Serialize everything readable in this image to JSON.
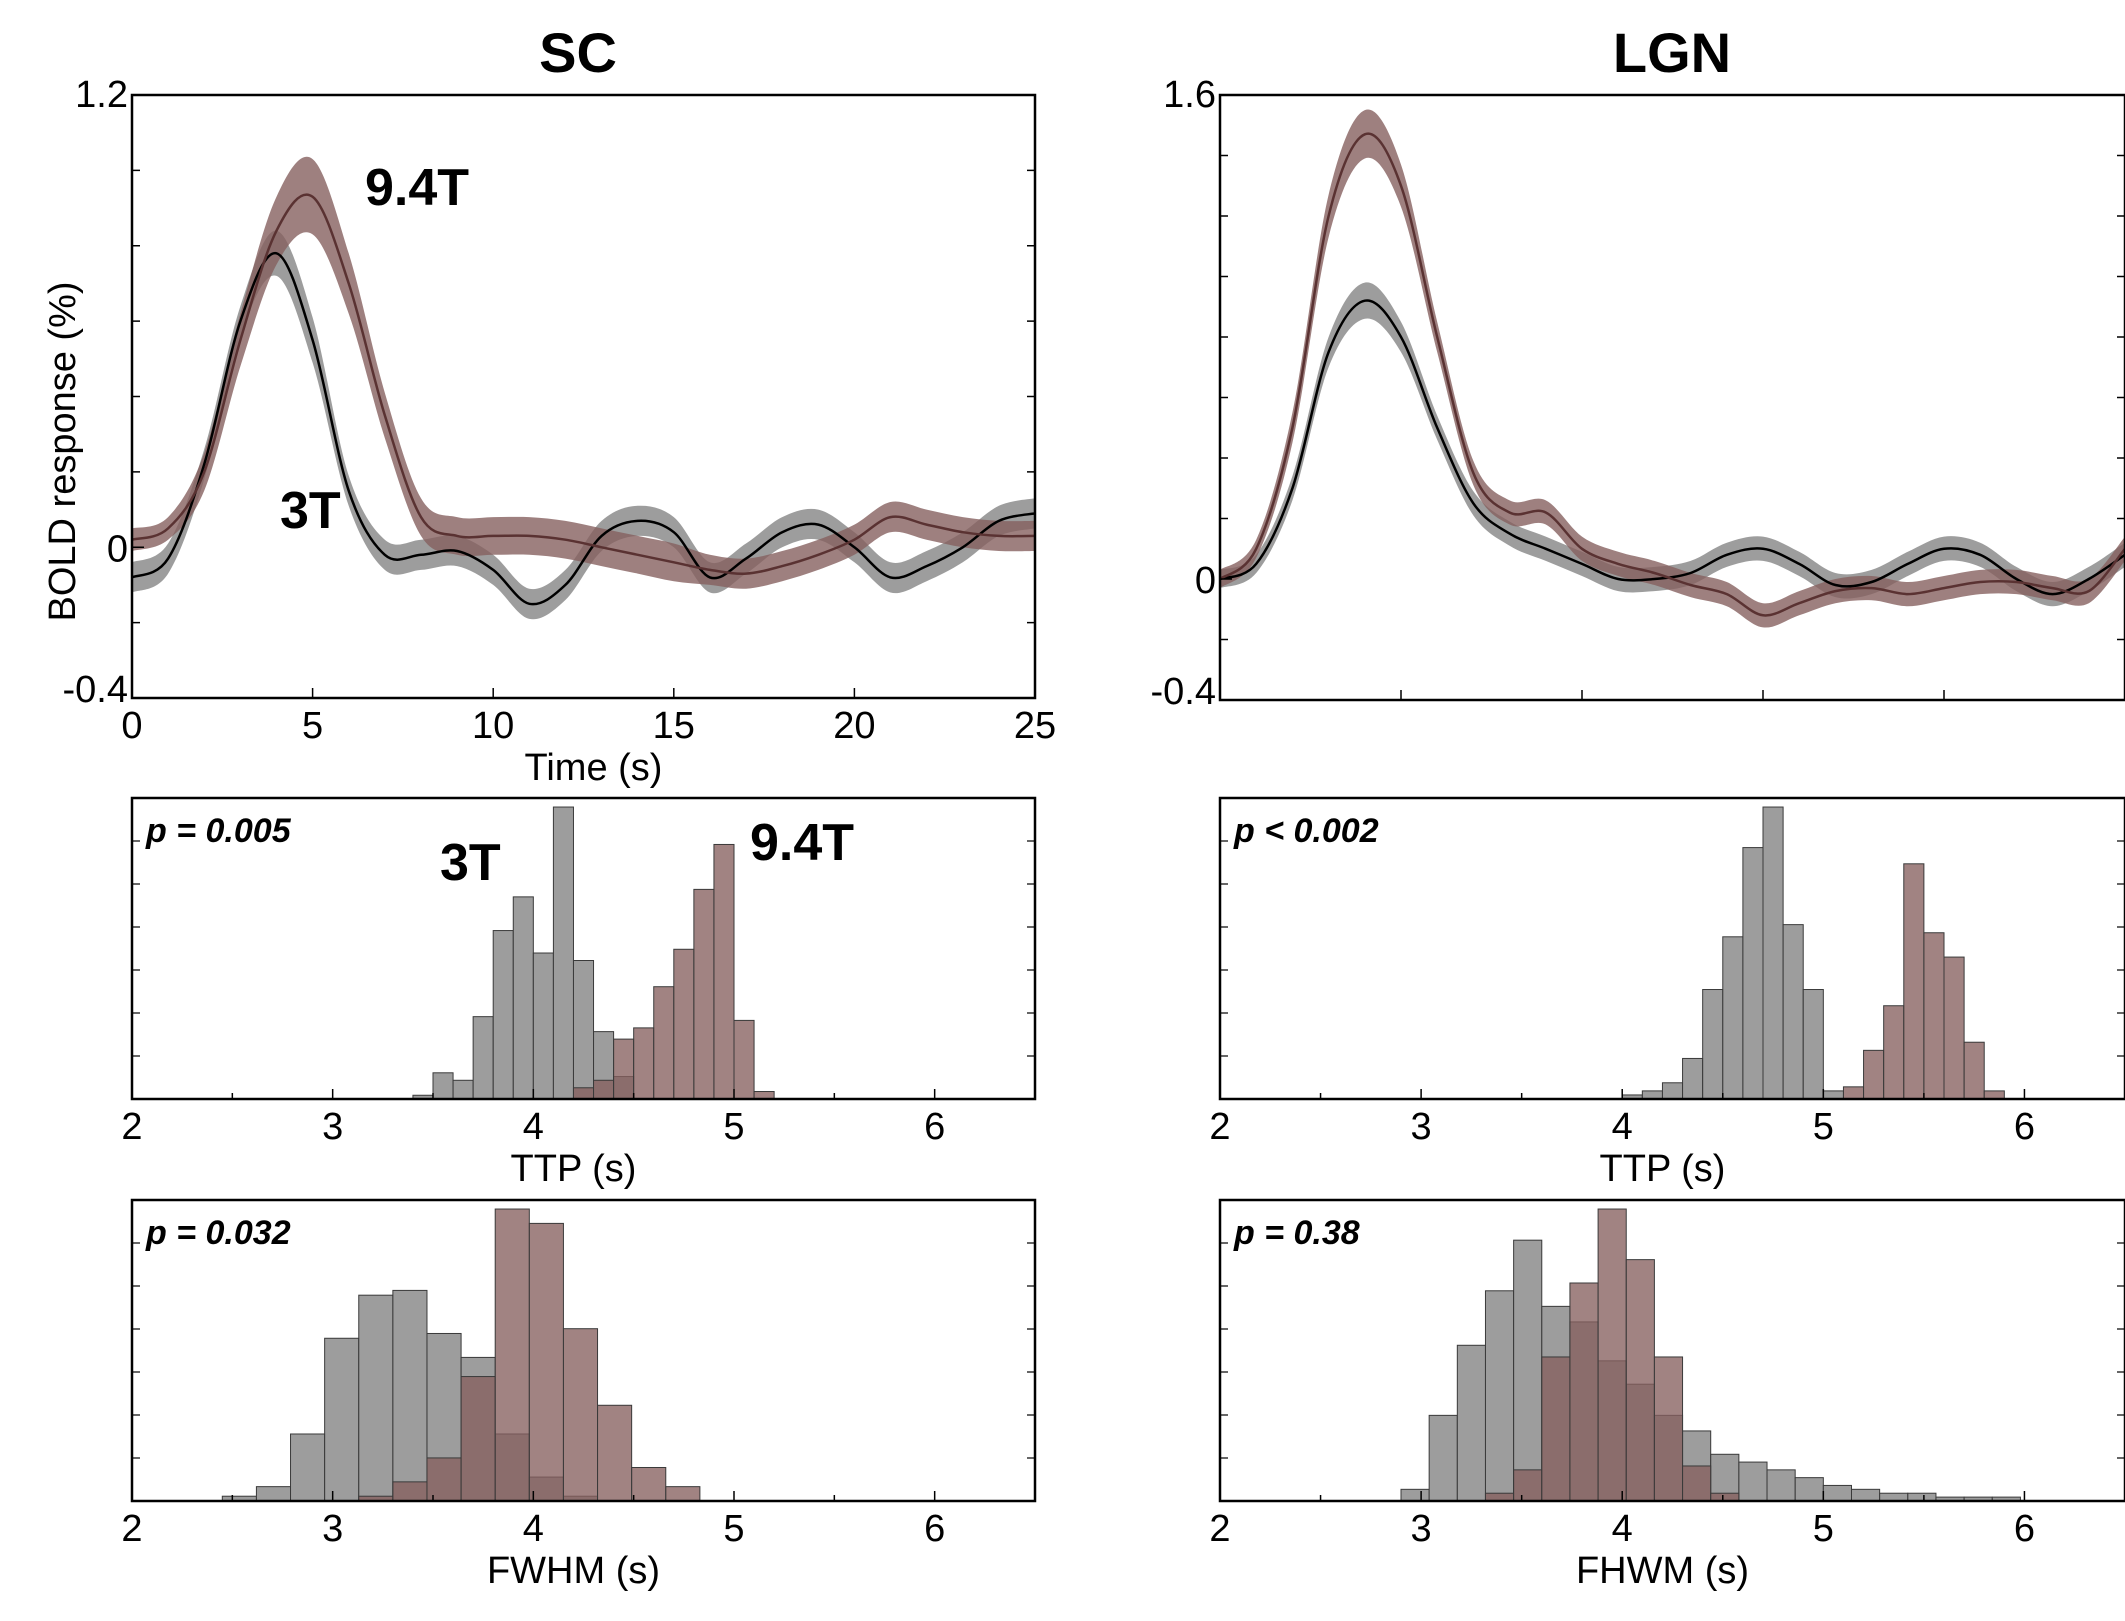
{
  "colors": {
    "t3_line": "#000000",
    "t3_fill": "#8c8c8c",
    "t94_line": "#5a3232",
    "t94_fill": "#86605f",
    "t3_label": "#404040",
    "t94_label": "#5c3a3a",
    "overlap_fill": "#5c3f3f"
  },
  "columns": [
    {
      "title": "SC"
    },
    {
      "title": "LGN"
    }
  ],
  "chart_data": [
    {
      "id": "sc-time",
      "type": "line",
      "panel_title": "SC",
      "xlabel": "Time (s)",
      "ylabel": "BOLD response (%)",
      "xlim": [
        0,
        25
      ],
      "ylim": [
        -0.4,
        1.2
      ],
      "x_ticks": [
        0,
        5,
        10,
        15,
        20,
        25
      ],
      "x_tick_labels": [
        "0",
        "5",
        "10",
        "15",
        "20",
        "25"
      ],
      "y_tick_labels": [
        {
          "value": 1.2,
          "label": "1.2"
        },
        {
          "value": 0,
          "label": "0"
        },
        {
          "value": -0.4,
          "label": "-0.4"
        }
      ],
      "y_minor_ticks": [
        1.0,
        0.8,
        0.6,
        0.4,
        0.2,
        -0.2
      ],
      "annotations": [
        {
          "text": "9.4T",
          "series": "9.4T",
          "x": 6.5,
          "y": 0.9
        },
        {
          "text": "3T",
          "series": "3T",
          "x": 4.0,
          "y": 0.05
        }
      ],
      "series": [
        {
          "name": "3T",
          "x": [
            0,
            1,
            2,
            3,
            4,
            5,
            6,
            7,
            8,
            9,
            10,
            11,
            12,
            13,
            14,
            15,
            16,
            17,
            18,
            19,
            20,
            21,
            22,
            23,
            24,
            25
          ],
          "y": [
            -0.08,
            -0.03,
            0.22,
            0.6,
            0.78,
            0.55,
            0.15,
            -0.02,
            -0.02,
            -0.01,
            -0.06,
            -0.15,
            -0.1,
            0.03,
            0.07,
            0.04,
            -0.08,
            -0.03,
            0.04,
            0.06,
            0.0,
            -0.08,
            -0.05,
            0.0,
            0.07,
            0.09
          ],
          "err": [
            0.04,
            0.04,
            0.04,
            0.04,
            0.06,
            0.06,
            0.04,
            0.04,
            0.04,
            0.04,
            0.04,
            0.04,
            0.04,
            0.04,
            0.04,
            0.04,
            0.04,
            0.04,
            0.04,
            0.04,
            0.04,
            0.04,
            0.04,
            0.04,
            0.04,
            0.04
          ]
        },
        {
          "name": "9.4T",
          "x": [
            0,
            1,
            2,
            3,
            4,
            5,
            6,
            7,
            8,
            9,
            10,
            11,
            12,
            13,
            14,
            15,
            16,
            17,
            18,
            19,
            20,
            21,
            22,
            23,
            24,
            25
          ],
          "y": [
            0.02,
            0.05,
            0.2,
            0.55,
            0.84,
            0.93,
            0.7,
            0.35,
            0.08,
            0.03,
            0.03,
            0.03,
            0.02,
            0.0,
            -0.02,
            -0.04,
            -0.06,
            -0.07,
            -0.05,
            -0.02,
            0.02,
            0.08,
            0.06,
            0.04,
            0.03,
            0.03
          ],
          "err": [
            0.03,
            0.03,
            0.05,
            0.07,
            0.09,
            0.1,
            0.08,
            0.06,
            0.05,
            0.05,
            0.05,
            0.05,
            0.05,
            0.05,
            0.05,
            0.05,
            0.04,
            0.04,
            0.04,
            0.04,
            0.04,
            0.04,
            0.04,
            0.04,
            0.04,
            0.04
          ]
        }
      ]
    },
    {
      "id": "lgn-time",
      "type": "line",
      "panel_title": "LGN",
      "xlim": [
        0,
        25
      ],
      "ylim": [
        -0.4,
        1.6
      ],
      "x_ticks": [
        0,
        5,
        10,
        15,
        20,
        25
      ],
      "x_tick_labels": [],
      "y_tick_labels": [
        {
          "value": 1.6,
          "label": "1.6"
        },
        {
          "value": 0,
          "label": "0"
        },
        {
          "value": -0.4,
          "label": "-0.4"
        }
      ],
      "y_minor_ticks": [
        1.4,
        1.2,
        1.0,
        0.8,
        0.6,
        0.4,
        0.2,
        -0.2
      ],
      "annotations": [],
      "series": [
        {
          "name": "3T",
          "x": [
            0,
            1,
            2,
            3,
            4,
            5,
            6,
            7,
            8,
            9,
            10,
            11,
            12,
            13,
            14,
            15,
            16,
            17,
            18,
            19,
            20,
            21,
            22,
            23,
            24,
            25
          ],
          "y": [
            0.0,
            0.05,
            0.3,
            0.75,
            0.92,
            0.8,
            0.5,
            0.25,
            0.15,
            0.1,
            0.05,
            0.0,
            0.0,
            0.02,
            0.08,
            0.1,
            0.05,
            -0.02,
            -0.01,
            0.05,
            0.1,
            0.08,
            0.0,
            -0.05,
            0.0,
            0.08
          ],
          "err": [
            0.03,
            0.03,
            0.04,
            0.05,
            0.06,
            0.05,
            0.04,
            0.04,
            0.04,
            0.04,
            0.04,
            0.04,
            0.04,
            0.04,
            0.04,
            0.04,
            0.04,
            0.04,
            0.04,
            0.04,
            0.04,
            0.04,
            0.04,
            0.04,
            0.04,
            0.04
          ]
        },
        {
          "name": "9.4T",
          "x": [
            0,
            1,
            2,
            3,
            4,
            5,
            6,
            7,
            8,
            9,
            10,
            11,
            12,
            13,
            14,
            15,
            16,
            17,
            18,
            19,
            20,
            21,
            22,
            23,
            24,
            25
          ],
          "y": [
            0.0,
            0.1,
            0.5,
            1.2,
            1.47,
            1.3,
            0.8,
            0.35,
            0.22,
            0.22,
            0.1,
            0.05,
            0.02,
            -0.02,
            -0.05,
            -0.12,
            -0.08,
            -0.04,
            -0.03,
            -0.05,
            -0.03,
            -0.01,
            -0.01,
            -0.03,
            -0.04,
            0.1
          ],
          "err": [
            0.03,
            0.03,
            0.05,
            0.07,
            0.08,
            0.07,
            0.05,
            0.04,
            0.04,
            0.04,
            0.04,
            0.04,
            0.04,
            0.04,
            0.04,
            0.04,
            0.04,
            0.04,
            0.04,
            0.04,
            0.04,
            0.04,
            0.04,
            0.04,
            0.04,
            0.04
          ]
        }
      ]
    },
    {
      "id": "sc-ttp",
      "type": "bar",
      "xlabel": "TTP (s)",
      "p_text": "p = 0.005",
      "xlim": [
        2,
        6.5
      ],
      "bin_width": 0.1,
      "x_ticks": [
        2,
        3,
        4,
        5,
        6
      ],
      "x_tick_labels": [
        "2",
        "3",
        "4",
        "5",
        "6"
      ],
      "annotations": [
        {
          "text": "3T",
          "series": "3T",
          "x": 3.7,
          "y": 0.78
        },
        {
          "text": "9.4T",
          "series": "9.4T",
          "x": 5.35,
          "y": 0.82
        }
      ],
      "series": [
        {
          "name": "3T",
          "bin_starts": [
            3.4,
            3.5,
            3.6,
            3.7,
            3.8,
            3.9,
            4.0,
            4.1,
            4.2,
            4.3,
            4.4
          ],
          "values": [
            1,
            7,
            5,
            22,
            45,
            54,
            39,
            78,
            37,
            18,
            6
          ]
        },
        {
          "name": "9.4T",
          "bin_starts": [
            4.2,
            4.3,
            4.4,
            4.5,
            4.6,
            4.7,
            4.8,
            4.9,
            5.0,
            5.1
          ],
          "values": [
            3,
            5,
            16,
            19,
            30,
            40,
            56,
            68,
            21,
            2
          ]
        }
      ]
    },
    {
      "id": "lgn-ttp",
      "type": "bar",
      "xlabel": "TTP (s)",
      "p_text": "p < 0.002",
      "xlim": [
        2,
        6.5
      ],
      "bin_width": 0.1,
      "x_ticks": [
        2,
        3,
        4,
        5,
        6
      ],
      "x_tick_labels": [
        "2",
        "3",
        "4",
        "5",
        "6"
      ],
      "annotations": [],
      "series": [
        {
          "name": "3T",
          "bin_starts": [
            4.0,
            4.1,
            4.2,
            4.3,
            4.4,
            4.5,
            4.6,
            4.7,
            4.8,
            4.9,
            5.0,
            5.1
          ],
          "values": [
            1,
            2,
            4,
            10,
            27,
            40,
            62,
            72,
            43,
            27,
            2,
            0
          ]
        },
        {
          "name": "9.4T",
          "bin_starts": [
            5.1,
            5.2,
            5.3,
            5.4,
            5.5,
            5.6,
            5.7,
            5.8
          ],
          "values": [
            3,
            12,
            23,
            58,
            41,
            35,
            14,
            2
          ]
        }
      ]
    },
    {
      "id": "sc-fwhm",
      "type": "bar",
      "xlabel": "FWHM (s)",
      "p_text": "p = 0.032",
      "xlim": [
        2,
        6.5
      ],
      "bin_width": 0.17,
      "x_ticks": [
        2,
        3,
        4,
        5,
        6
      ],
      "x_tick_labels": [
        "2",
        "3",
        "4",
        "5",
        "6"
      ],
      "annotations": [],
      "series": [
        {
          "name": "3T",
          "bin_starts": [
            2.45,
            2.62,
            2.79,
            2.96,
            3.13,
            3.3,
            3.47,
            3.64,
            3.81,
            3.98,
            4.15
          ],
          "values": [
            1,
            3,
            14,
            34,
            43,
            44,
            35,
            30,
            14,
            5,
            1
          ]
        },
        {
          "name": "9.4T",
          "bin_starts": [
            3.13,
            3.3,
            3.47,
            3.64,
            3.81,
            3.98,
            4.15,
            4.32,
            4.49,
            4.66
          ],
          "values": [
            1,
            4,
            9,
            26,
            61,
            58,
            36,
            20,
            7,
            3
          ]
        }
      ]
    },
    {
      "id": "lgn-fwhm",
      "type": "bar",
      "xlabel": "FHWM (s)",
      "p_text": "p = 0.38",
      "xlim": [
        2,
        6.5
      ],
      "bin_width": 0.14,
      "x_ticks": [
        2,
        3,
        4,
        5,
        6
      ],
      "x_tick_labels": [
        "2",
        "3",
        "4",
        "5",
        "6"
      ],
      "annotations": [],
      "series": [
        {
          "name": "3T",
          "bin_starts": [
            2.9,
            3.04,
            3.18,
            3.32,
            3.46,
            3.6,
            3.74,
            3.88,
            4.02,
            4.16,
            4.3,
            4.44,
            4.58,
            4.72,
            4.86,
            5.0,
            5.14,
            5.28,
            5.42,
            5.56,
            5.7,
            5.84
          ],
          "values": [
            3,
            22,
            40,
            54,
            67,
            50,
            46,
            36,
            30,
            22,
            18,
            12,
            10,
            8,
            6,
            4,
            3,
            2,
            2,
            1,
            1,
            1
          ]
        },
        {
          "name": "9.4T",
          "bin_starts": [
            3.32,
            3.46,
            3.6,
            3.74,
            3.88,
            4.02,
            4.16,
            4.3,
            4.44
          ],
          "values": [
            2,
            8,
            37,
            56,
            75,
            62,
            37,
            9,
            2
          ]
        }
      ]
    }
  ]
}
